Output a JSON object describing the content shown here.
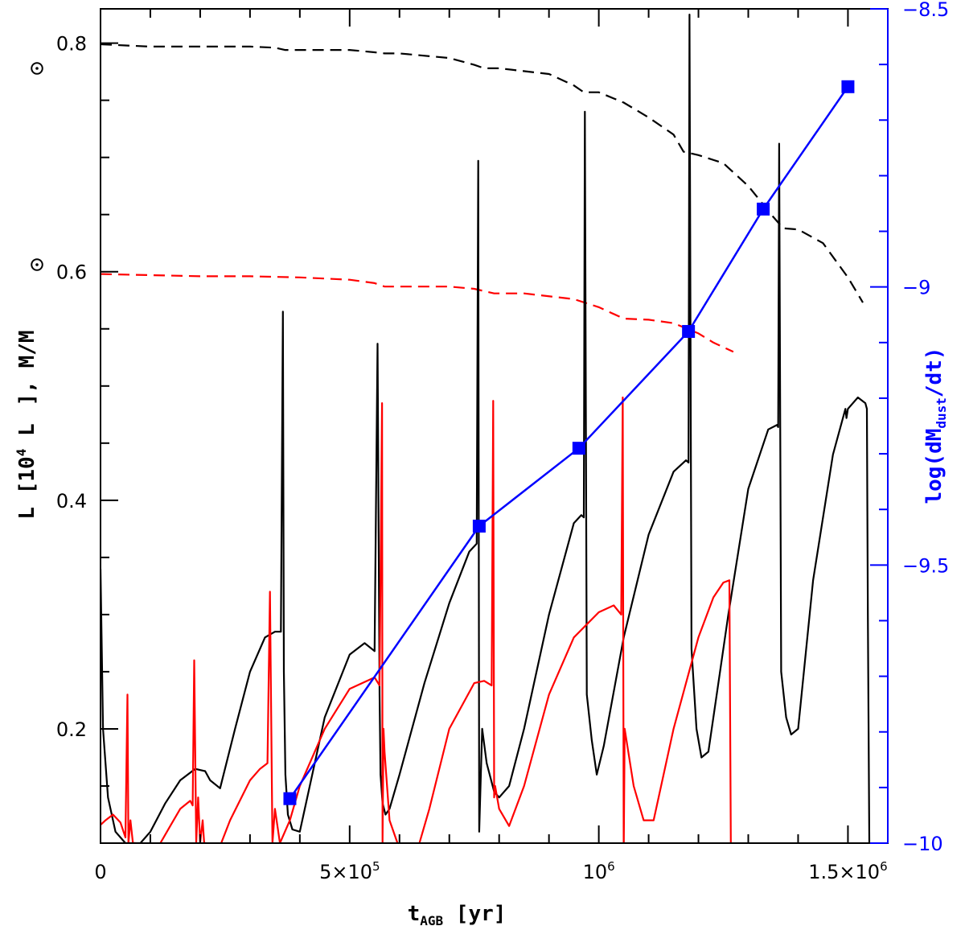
{
  "chart_data": {
    "type": "line",
    "xlabel": "t",
    "xlabel_sub": "AGB",
    "xlabel_unit": " [yr]",
    "ylabel": "L [10",
    "ylabel_sup": "4",
    "ylabel_rest": " L",
    "ylabel_end": "], M/M",
    "y2label": "log(dM",
    "y2label_sub": "dust",
    "y2label_end": "/dt)",
    "xlim": [
      0,
      1580000
    ],
    "ylim": [
      0.1,
      0.83
    ],
    "y2lim": [
      -10,
      -8.5
    ],
    "x_ticks": [
      {
        "value": 0,
        "label": "0"
      },
      {
        "value": 500000,
        "label": "5×10",
        "sup": "5"
      },
      {
        "value": 1000000,
        "label": "10",
        "sup": "6"
      },
      {
        "value": 1500000,
        "label": "1.5×10",
        "sup": "6"
      }
    ],
    "y_ticks": [
      {
        "value": 0.2,
        "label": "0.2"
      },
      {
        "value": 0.4,
        "label": "0.4"
      },
      {
        "value": 0.6,
        "label": "0.6"
      },
      {
        "value": 0.8,
        "label": "0.8"
      }
    ],
    "y2_ticks": [
      {
        "value": -10,
        "label": "−10"
      },
      {
        "value": -9.5,
        "label": "−9.5"
      },
      {
        "value": -9,
        "label": "−9"
      },
      {
        "value": -8.5,
        "label": "−8.5"
      }
    ],
    "colors": {
      "black": "#000000",
      "red": "#ff0000",
      "blue": "#0000ff"
    },
    "series": [
      {
        "color": "#000000",
        "style": "dashed",
        "axis": "left",
        "x": [
          0,
          50000,
          100000,
          200000,
          300000,
          350000,
          370000,
          400000,
          500000,
          550000,
          570000,
          600000,
          700000,
          750000,
          770000,
          800000,
          900000,
          950000,
          970000,
          1000000,
          1050000,
          1100000,
          1150000,
          1170000,
          1200000,
          1250000,
          1300000,
          1350000,
          1370000,
          1400000,
          1450000,
          1500000,
          1530000
        ],
        "y": [
          0.799,
          0.798,
          0.797,
          0.797,
          0.797,
          0.796,
          0.794,
          0.794,
          0.794,
          0.792,
          0.791,
          0.791,
          0.787,
          0.781,
          0.778,
          0.778,
          0.773,
          0.763,
          0.757,
          0.757,
          0.748,
          0.735,
          0.72,
          0.705,
          0.702,
          0.695,
          0.675,
          0.648,
          0.638,
          0.637,
          0.625,
          0.595,
          0.573
        ]
      },
      {
        "color": "#ff0000",
        "style": "dashed",
        "axis": "left",
        "x": [
          0,
          100000,
          200000,
          300000,
          400000,
          500000,
          550000,
          570000,
          600000,
          700000,
          750000,
          790000,
          850000,
          950000,
          1000000,
          1050000,
          1100000,
          1150000,
          1200000,
          1230000,
          1270000
        ],
        "y": [
          0.598,
          0.597,
          0.596,
          0.596,
          0.595,
          0.593,
          0.59,
          0.587,
          0.587,
          0.587,
          0.585,
          0.581,
          0.581,
          0.576,
          0.569,
          0.559,
          0.558,
          0.555,
          0.546,
          0.538,
          0.53
        ]
      },
      {
        "color": "#000000",
        "style": "solid",
        "axis": "left",
        "x": [
          0,
          5000,
          15000,
          30000,
          50000,
          70000,
          80000,
          100000,
          130000,
          160000,
          190000,
          210000,
          220000,
          240000,
          270000,
          300000,
          330000,
          350000,
          362000,
          366000,
          368000,
          371000,
          376000,
          385000,
          400000,
          420000,
          450000,
          500000,
          530000,
          550000,
          556000,
          560000,
          562000,
          566000,
          572000,
          580000,
          600000,
          650000,
          700000,
          740000,
          755000,
          758000,
          760000,
          766000,
          775000,
          790000,
          800000,
          820000,
          850000,
          900000,
          950000,
          965000,
          970000,
          972000,
          976000,
          986000,
          996000,
          1010000,
          1050000,
          1100000,
          1150000,
          1175000,
          1180000,
          1182000,
          1186000,
          1196000,
          1206000,
          1220000,
          1260000,
          1300000,
          1340000,
          1358000,
          1360000,
          1362000,
          1366000,
          1376000,
          1386000,
          1400000,
          1430000,
          1470000,
          1495000,
          1497000,
          1500000,
          1520000,
          1535000,
          1538000,
          1540000,
          1543000
        ],
        "y": [
          0.34,
          0.2,
          0.14,
          0.11,
          0.1,
          0.1,
          0.1,
          0.11,
          0.135,
          0.155,
          0.165,
          0.163,
          0.155,
          0.148,
          0.2,
          0.25,
          0.28,
          0.285,
          0.285,
          0.565,
          0.25,
          0.16,
          0.125,
          0.112,
          0.11,
          0.15,
          0.21,
          0.265,
          0.275,
          0.268,
          0.537,
          0.23,
          0.16,
          0.135,
          0.125,
          0.13,
          0.16,
          0.24,
          0.31,
          0.355,
          0.362,
          0.697,
          0.11,
          0.2,
          0.17,
          0.145,
          0.14,
          0.15,
          0.2,
          0.3,
          0.38,
          0.387,
          0.385,
          0.74,
          0.23,
          0.19,
          0.16,
          0.185,
          0.28,
          0.37,
          0.425,
          0.435,
          0.433,
          0.825,
          0.27,
          0.2,
          0.175,
          0.18,
          0.3,
          0.41,
          0.462,
          0.466,
          0.464,
          0.712,
          0.25,
          0.21,
          0.195,
          0.2,
          0.33,
          0.44,
          0.48,
          0.472,
          0.48,
          0.49,
          0.485,
          0.48,
          0.3,
          0.09
        ]
      },
      {
        "color": "#ff0000",
        "style": "solid",
        "axis": "left",
        "x": [
          0,
          10000,
          25000,
          40000,
          50000,
          54000,
          56000,
          60000,
          65000,
          70000,
          100000,
          120000,
          140000,
          160000,
          180000,
          185000,
          188000,
          192000,
          196000,
          200000,
          205000,
          208000,
          212000,
          220000,
          260000,
          300000,
          320000,
          335000,
          340000,
          345000,
          350000,
          360000,
          380000,
          400000,
          450000,
          500000,
          550000,
          560000,
          565000,
          566000,
          568000,
          570000,
          580000,
          620000,
          660000,
          700000,
          750000,
          770000,
          785000,
          788000,
          790000,
          792000,
          800000,
          820000,
          850000,
          900000,
          950000,
          1000000,
          1030000,
          1045000,
          1048000,
          1050000,
          1052000,
          1070000,
          1090000,
          1110000,
          1150000,
          1200000,
          1230000,
          1250000,
          1262000,
          1265000,
          1268000
        ],
        "y": [
          0.116,
          0.12,
          0.125,
          0.118,
          0.105,
          0.23,
          0.1,
          0.12,
          0.1,
          0.1,
          0.08,
          0.1,
          0.115,
          0.13,
          0.137,
          0.133,
          0.26,
          0.1,
          0.14,
          0.1,
          0.12,
          0.1,
          0.1,
          0.075,
          0.12,
          0.155,
          0.165,
          0.17,
          0.32,
          0.1,
          0.13,
          0.1,
          0.12,
          0.15,
          0.2,
          0.235,
          0.245,
          0.238,
          0.485,
          0.1,
          0.2,
          0.18,
          0.12,
          0.07,
          0.13,
          0.2,
          0.24,
          0.242,
          0.238,
          0.487,
          0.14,
          0.15,
          0.13,
          0.115,
          0.15,
          0.23,
          0.28,
          0.302,
          0.308,
          0.3,
          0.49,
          0.09,
          0.2,
          0.15,
          0.12,
          0.12,
          0.2,
          0.28,
          0.315,
          0.328,
          0.33,
          0.1,
          0.08
        ]
      },
      {
        "color": "#0000ff",
        "style": "solid",
        "axis": "right",
        "markers": "square",
        "x": [
          380000,
          760000,
          960000,
          1180000,
          1330000,
          1500000
        ],
        "y": [
          -9.92,
          -9.43,
          -9.29,
          -9.08,
          -8.86,
          -8.64
        ]
      }
    ]
  }
}
